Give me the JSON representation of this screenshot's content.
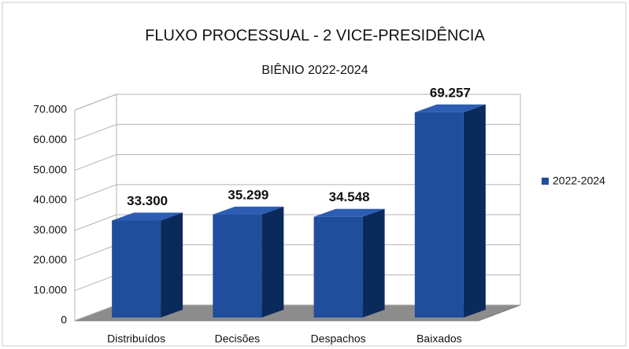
{
  "chart_data": {
    "type": "bar3d",
    "title": "FLUXO PROCESSUAL - 2 VICE-PRESIDÊNCIA",
    "subtitle": "BIÊNIO 2022-2024",
    "categories": [
      "Distribuídos",
      "Decisões",
      "Despachos",
      "Baixados"
    ],
    "series": [
      {
        "name": "2022-2024",
        "color": "#1f4e9c",
        "values": [
          33300,
          35299,
          34548,
          69257
        ],
        "value_labels": [
          "33.300",
          "35.299",
          "34.548",
          "69.257"
        ]
      }
    ],
    "ylim": [
      0,
      70000
    ],
    "yticks": [
      0,
      {
        "value": 10000,
        "label": "10.000"
      },
      {
        "value": 20000,
        "label": "20.000"
      },
      {
        "value": 30000,
        "label": "30.000"
      },
      {
        "value": 40000,
        "label": "40.000"
      },
      {
        "value": 50000,
        "label": "50.000"
      },
      {
        "value": 60000,
        "label": "60.000"
      },
      {
        "value": 70000,
        "label": "70.000"
      }
    ],
    "grid": true,
    "legend": "right"
  }
}
